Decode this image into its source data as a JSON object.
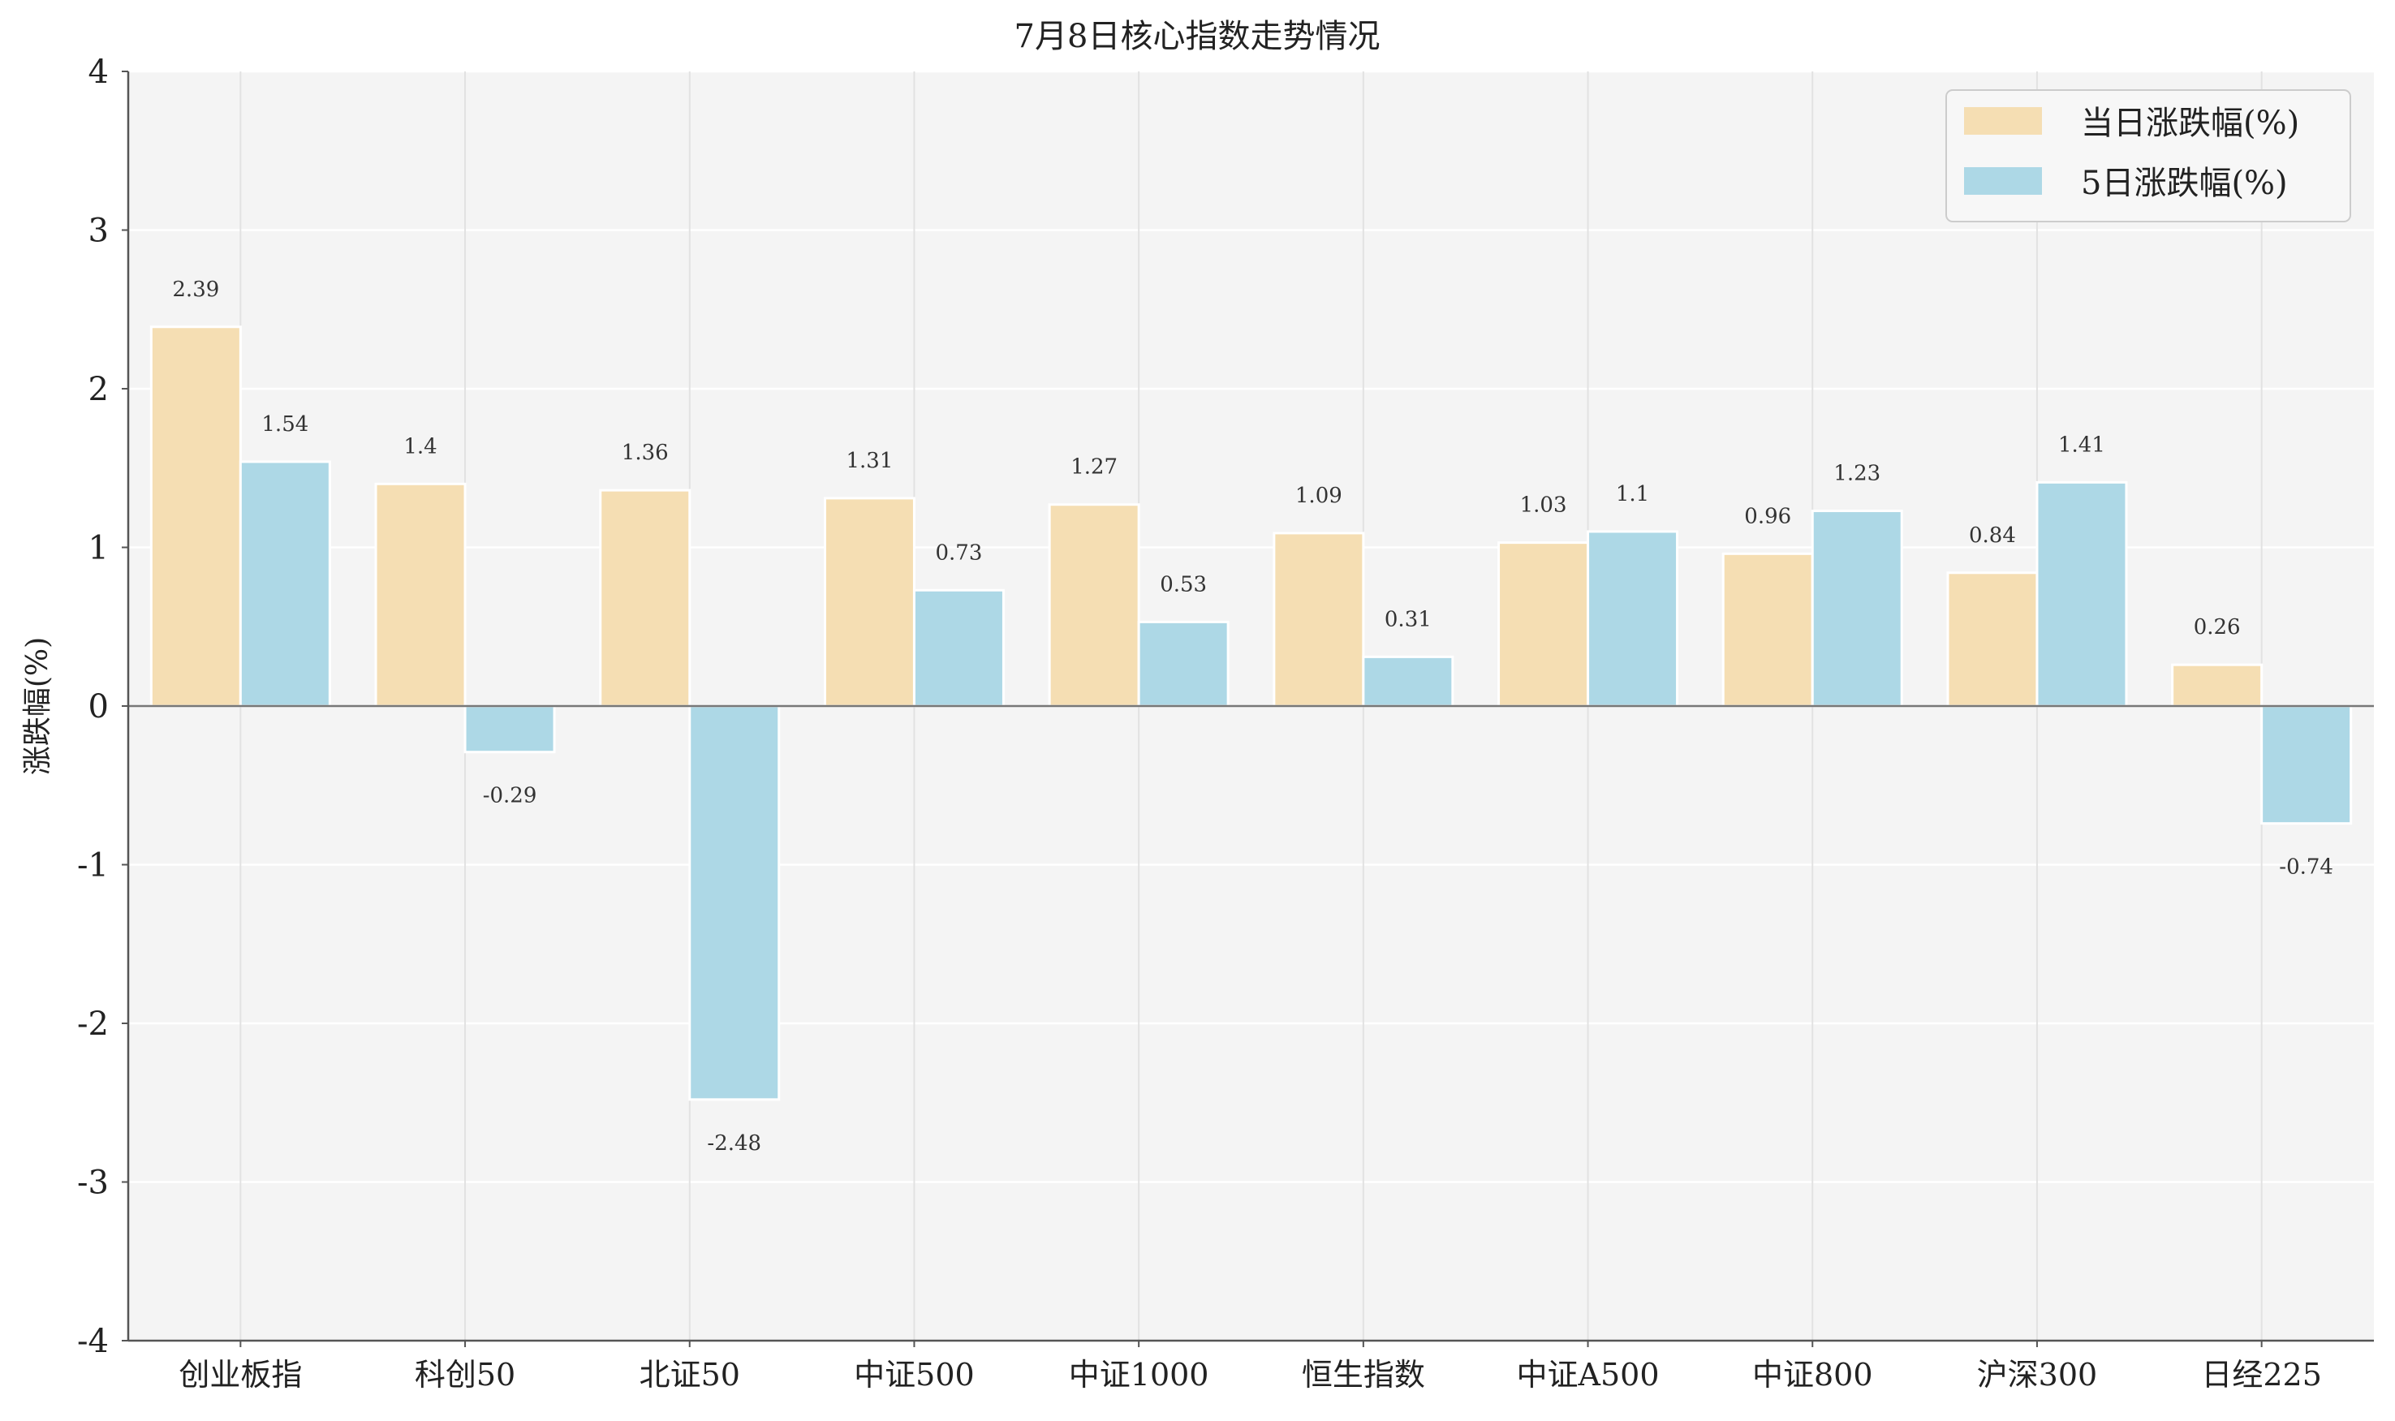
{
  "chart_data": {
    "type": "bar",
    "title": "7月8日核心指数走势情况",
    "xlabel": "",
    "ylabel": "涨跌幅(%)",
    "ylim": [
      -4,
      4
    ],
    "yticks": [
      -4,
      -3,
      -2,
      -1,
      0,
      1,
      2,
      3,
      4
    ],
    "grid": true,
    "legend_position": "top-right",
    "categories": [
      "创业板指",
      "科创50",
      "北证50",
      "中证500",
      "中证1000",
      "恒生指数",
      "中证A500",
      "中证800",
      "沪深300",
      "日经225"
    ],
    "series": [
      {
        "name": "当日涨跌幅(%)",
        "color": "#f5deb3",
        "values": [
          2.39,
          1.4,
          1.36,
          1.31,
          1.27,
          1.09,
          1.03,
          0.96,
          0.84,
          0.26
        ],
        "labels": [
          "2.39",
          "1.4",
          "1.36",
          "1.31",
          "1.27",
          "1.09",
          "1.03",
          "0.96",
          "0.84",
          "0.26"
        ]
      },
      {
        "name": "5日涨跌幅(%)",
        "color": "#add8e6",
        "values": [
          1.54,
          -0.29,
          -2.48,
          0.73,
          0.53,
          0.31,
          1.1,
          1.23,
          1.41,
          -0.74
        ],
        "labels": [
          "1.54",
          "-0.29",
          "-2.48",
          "0.73",
          "0.53",
          "0.31",
          "1.1",
          "1.23",
          "1.41",
          "-0.74"
        ]
      }
    ]
  }
}
